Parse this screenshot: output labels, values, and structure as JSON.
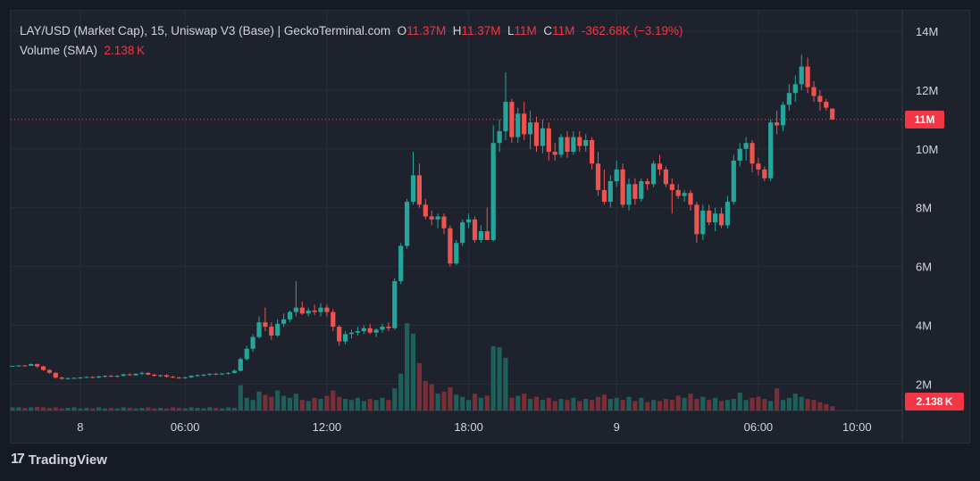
{
  "header": {
    "symbol": "LAY/USD (Market Cap), 15, Uniswap V3 (Base) | GeckoTerminal.com",
    "o_label": "O",
    "o_value": "11.37M",
    "h_label": "H",
    "h_value": "11.37M",
    "l_label": "L",
    "l_value": "11M",
    "c_label": "C",
    "c_value": "11M",
    "change": "-362.68K (−3.19%)",
    "volume_label": "Volume (SMA)",
    "volume_value": "2.138 K"
  },
  "last_price_tag": "11M",
  "volume_tag": "2.138 K",
  "brand": "TradingView",
  "colors": {
    "up": "#26a69a",
    "down": "#ef5350",
    "up_vol": "#1e5f5a",
    "down_vol": "#7a2e38",
    "accent": "#f23645"
  },
  "chart_data": {
    "type": "candlestick",
    "y_axis": {
      "range": [
        1.1,
        14.7
      ],
      "ticks": [
        "14M",
        "12M",
        "10M",
        "8M",
        "6M",
        "4M",
        "2M"
      ],
      "tick_values": [
        14,
        12,
        10,
        8,
        6,
        4,
        2
      ],
      "unit": "M"
    },
    "x_axis": {
      "ticks": [
        "8",
        "06:00",
        "12:00",
        "18:00",
        "9",
        "06:00",
        "10:00"
      ],
      "tick_index": [
        11,
        28,
        51,
        74,
        98,
        121,
        137
      ]
    },
    "last_price": 11.0,
    "candles": [
      [
        2.62,
        2.62,
        2.62,
        2.62
      ],
      [
        2.62,
        2.65,
        2.6,
        2.63
      ],
      [
        2.63,
        2.65,
        2.6,
        2.62
      ],
      [
        2.62,
        2.7,
        2.62,
        2.68
      ],
      [
        2.68,
        2.7,
        2.55,
        2.6
      ],
      [
        2.6,
        2.62,
        2.45,
        2.48
      ],
      [
        2.48,
        2.5,
        2.35,
        2.38
      ],
      [
        2.38,
        2.4,
        2.18,
        2.22
      ],
      [
        2.22,
        2.25,
        2.15,
        2.18
      ],
      [
        2.18,
        2.22,
        2.15,
        2.2
      ],
      [
        2.2,
        2.23,
        2.17,
        2.21
      ],
      [
        2.21,
        2.25,
        2.18,
        2.22
      ],
      [
        2.22,
        2.26,
        2.2,
        2.24
      ],
      [
        2.24,
        2.27,
        2.2,
        2.22
      ],
      [
        2.22,
        2.28,
        2.2,
        2.26
      ],
      [
        2.26,
        2.3,
        2.22,
        2.28
      ],
      [
        2.28,
        2.3,
        2.24,
        2.25
      ],
      [
        2.25,
        2.3,
        2.22,
        2.28
      ],
      [
        2.28,
        2.35,
        2.25,
        2.33
      ],
      [
        2.33,
        2.36,
        2.28,
        2.3
      ],
      [
        2.3,
        2.36,
        2.28,
        2.35
      ],
      [
        2.35,
        2.42,
        2.3,
        2.38
      ],
      [
        2.38,
        2.4,
        2.3,
        2.32
      ],
      [
        2.32,
        2.35,
        2.25,
        2.28
      ],
      [
        2.28,
        2.32,
        2.24,
        2.3
      ],
      [
        2.3,
        2.33,
        2.22,
        2.25
      ],
      [
        2.25,
        2.28,
        2.2,
        2.22
      ],
      [
        2.22,
        2.25,
        2.18,
        2.2
      ],
      [
        2.2,
        2.25,
        2.18,
        2.23
      ],
      [
        2.23,
        2.3,
        2.2,
        2.28
      ],
      [
        2.28,
        2.33,
        2.25,
        2.3
      ],
      [
        2.3,
        2.34,
        2.25,
        2.32
      ],
      [
        2.32,
        2.36,
        2.28,
        2.35
      ],
      [
        2.35,
        2.38,
        2.3,
        2.33
      ],
      [
        2.33,
        2.37,
        2.3,
        2.36
      ],
      [
        2.36,
        2.4,
        2.32,
        2.38
      ],
      [
        2.38,
        2.5,
        2.35,
        2.45
      ],
      [
        2.45,
        2.9,
        2.42,
        2.85
      ],
      [
        2.85,
        3.3,
        2.8,
        3.2
      ],
      [
        3.2,
        3.7,
        3.1,
        3.6
      ],
      [
        3.6,
        4.3,
        3.55,
        4.1
      ],
      [
        4.1,
        4.6,
        3.8,
        3.95
      ],
      [
        3.95,
        4.1,
        3.5,
        3.65
      ],
      [
        3.65,
        4.2,
        3.6,
        4.05
      ],
      [
        4.05,
        4.4,
        3.95,
        4.2
      ],
      [
        4.2,
        4.5,
        4.1,
        4.45
      ],
      [
        4.45,
        5.5,
        4.3,
        4.6
      ],
      [
        4.6,
        4.8,
        4.35,
        4.4
      ],
      [
        4.4,
        4.6,
        4.3,
        4.5
      ],
      [
        4.5,
        4.7,
        4.35,
        4.45
      ],
      [
        4.45,
        4.75,
        4.3,
        4.6
      ],
      [
        4.6,
        4.7,
        4.3,
        4.45
      ],
      [
        4.45,
        4.55,
        3.8,
        3.95
      ],
      [
        3.95,
        4.0,
        3.3,
        3.45
      ],
      [
        3.45,
        3.8,
        3.35,
        3.7
      ],
      [
        3.7,
        3.85,
        3.55,
        3.75
      ],
      [
        3.75,
        3.95,
        3.65,
        3.8
      ],
      [
        3.8,
        4.0,
        3.7,
        3.9
      ],
      [
        3.9,
        4.05,
        3.7,
        3.75
      ],
      [
        3.75,
        3.9,
        3.6,
        3.85
      ],
      [
        3.85,
        4.05,
        3.75,
        3.95
      ],
      [
        3.95,
        4.1,
        3.8,
        3.9
      ],
      [
        3.9,
        5.6,
        3.85,
        5.5
      ],
      [
        5.5,
        6.8,
        5.4,
        6.7
      ],
      [
        6.7,
        8.3,
        6.6,
        8.2
      ],
      [
        8.2,
        9.9,
        8.1,
        9.1
      ],
      [
        9.1,
        9.5,
        8.0,
        8.1
      ],
      [
        8.1,
        8.3,
        7.6,
        7.7
      ],
      [
        7.7,
        7.9,
        7.4,
        7.6
      ],
      [
        7.6,
        7.8,
        7.3,
        7.7
      ],
      [
        7.7,
        7.8,
        7.1,
        7.3
      ],
      [
        7.3,
        7.4,
        6.0,
        6.1
      ],
      [
        6.1,
        6.9,
        6.05,
        6.8
      ],
      [
        6.8,
        7.6,
        6.7,
        7.5
      ],
      [
        7.5,
        7.8,
        7.3,
        7.6
      ],
      [
        7.6,
        7.7,
        6.8,
        6.9
      ],
      [
        6.9,
        7.4,
        6.8,
        7.2
      ],
      [
        7.2,
        8.0,
        6.9,
        6.9
      ],
      [
        6.9,
        10.8,
        6.85,
        10.2
      ],
      [
        10.2,
        11.0,
        9.9,
        10.6
      ],
      [
        10.6,
        12.6,
        10.3,
        11.6
      ],
      [
        11.6,
        11.7,
        10.2,
        10.4
      ],
      [
        10.4,
        11.4,
        10.2,
        11.2
      ],
      [
        11.2,
        11.6,
        10.3,
        10.5
      ],
      [
        10.5,
        11.3,
        10.0,
        10.9
      ],
      [
        10.9,
        11.1,
        9.9,
        10.1
      ],
      [
        10.1,
        11.0,
        9.85,
        10.7
      ],
      [
        10.7,
        10.9,
        9.6,
        9.9
      ],
      [
        9.9,
        10.2,
        9.6,
        9.8
      ],
      [
        9.8,
        10.5,
        9.7,
        10.4
      ],
      [
        10.4,
        10.6,
        9.7,
        9.9
      ],
      [
        9.9,
        10.6,
        9.8,
        10.4
      ],
      [
        10.4,
        10.6,
        9.9,
        10.1
      ],
      [
        10.1,
        10.5,
        9.9,
        10.3
      ],
      [
        10.3,
        10.4,
        9.3,
        9.5
      ],
      [
        9.5,
        9.9,
        8.4,
        8.6
      ],
      [
        8.6,
        9.3,
        8.1,
        8.2
      ],
      [
        8.2,
        9.1,
        8.0,
        8.9
      ],
      [
        8.9,
        9.6,
        8.7,
        9.3
      ],
      [
        9.3,
        9.5,
        8.0,
        8.1
      ],
      [
        8.1,
        9.0,
        7.9,
        8.8
      ],
      [
        8.8,
        9.0,
        8.1,
        8.3
      ],
      [
        8.3,
        9.0,
        8.2,
        8.9
      ],
      [
        8.9,
        9.0,
        8.6,
        8.8
      ],
      [
        8.8,
        9.6,
        8.7,
        9.5
      ],
      [
        9.5,
        9.8,
        9.1,
        9.3
      ],
      [
        9.3,
        9.4,
        8.7,
        8.8
      ],
      [
        8.8,
        9.0,
        7.8,
        8.6
      ],
      [
        8.6,
        8.8,
        8.3,
        8.4
      ],
      [
        8.4,
        8.6,
        8.2,
        8.5
      ],
      [
        8.5,
        8.6,
        7.9,
        8.1
      ],
      [
        8.1,
        8.2,
        6.8,
        7.1
      ],
      [
        7.1,
        8.1,
        6.9,
        7.9
      ],
      [
        7.9,
        8.1,
        7.4,
        7.5
      ],
      [
        7.5,
        8.0,
        7.2,
        7.8
      ],
      [
        7.8,
        8.0,
        7.3,
        7.4
      ],
      [
        7.4,
        8.4,
        7.3,
        8.2
      ],
      [
        8.2,
        9.8,
        8.1,
        9.6
      ],
      [
        9.6,
        10.2,
        9.4,
        10.0
      ],
      [
        10.0,
        10.4,
        9.6,
        10.2
      ],
      [
        10.2,
        10.3,
        9.2,
        9.5
      ],
      [
        9.5,
        9.7,
        9.1,
        9.3
      ],
      [
        9.3,
        9.4,
        8.9,
        9.0
      ],
      [
        9.0,
        11.0,
        8.9,
        10.9
      ],
      [
        10.9,
        11.3,
        10.5,
        10.8
      ],
      [
        10.8,
        11.6,
        10.6,
        11.5
      ],
      [
        11.5,
        12.2,
        11.3,
        11.9
      ],
      [
        11.9,
        12.5,
        11.6,
        12.2
      ],
      [
        12.2,
        13.2,
        12.0,
        12.8
      ],
      [
        12.8,
        13.1,
        11.9,
        12.1
      ],
      [
        12.1,
        12.3,
        11.6,
        11.8
      ],
      [
        11.8,
        12.0,
        11.3,
        11.6
      ],
      [
        11.6,
        11.7,
        11.3,
        11.4
      ],
      [
        11.37,
        11.37,
        11.0,
        11.0
      ]
    ],
    "volume_axis_range": [
      0,
      10
    ],
    "volumes": [
      0.3,
      0.3,
      0.25,
      0.3,
      0.35,
      0.3,
      0.25,
      0.3,
      0.2,
      0.25,
      0.3,
      0.2,
      0.25,
      0.2,
      0.3,
      0.2,
      0.25,
      0.2,
      0.3,
      0.25,
      0.2,
      0.25,
      0.3,
      0.2,
      0.25,
      0.2,
      0.3,
      0.25,
      0.2,
      0.3,
      0.25,
      0.2,
      0.3,
      0.25,
      0.2,
      0.3,
      0.25,
      2.4,
      1.2,
      1.0,
      1.8,
      1.5,
      1.3,
      1.9,
      1.4,
      1.2,
      1.6,
      1.0,
      0.9,
      1.2,
      1.1,
      1.4,
      1.9,
      1.3,
      1.1,
      1.0,
      1.2,
      0.9,
      1.1,
      1.0,
      1.2,
      1.0,
      2.1,
      3.5,
      8.3,
      7.3,
      4.5,
      2.8,
      2.5,
      1.6,
      1.8,
      2.2,
      1.5,
      1.3,
      1.0,
      1.6,
      1.2,
      1.4,
      6.1,
      6.0,
      5.0,
      1.2,
      1.4,
      1.6,
      1.1,
      1.3,
      1.0,
      1.2,
      0.9,
      1.1,
      1.0,
      1.2,
      0.9,
      1.1,
      1.0,
      1.3,
      1.5,
      1.1,
      1.2,
      1.0,
      1.3,
      0.9,
      1.2,
      0.8,
      1.0,
      0.9,
      1.1,
      1.0,
      1.4,
      1.2,
      1.6,
      1.1,
      1.3,
      1.0,
      1.2,
      0.9,
      1.0,
      1.1,
      1.7,
      1.0,
      1.2,
      1.3,
      1.1,
      0.9,
      2.1,
      1.0,
      1.2,
      1.6,
      1.3,
      1.1,
      1.0,
      0.8,
      0.6,
      0.4
    ]
  }
}
